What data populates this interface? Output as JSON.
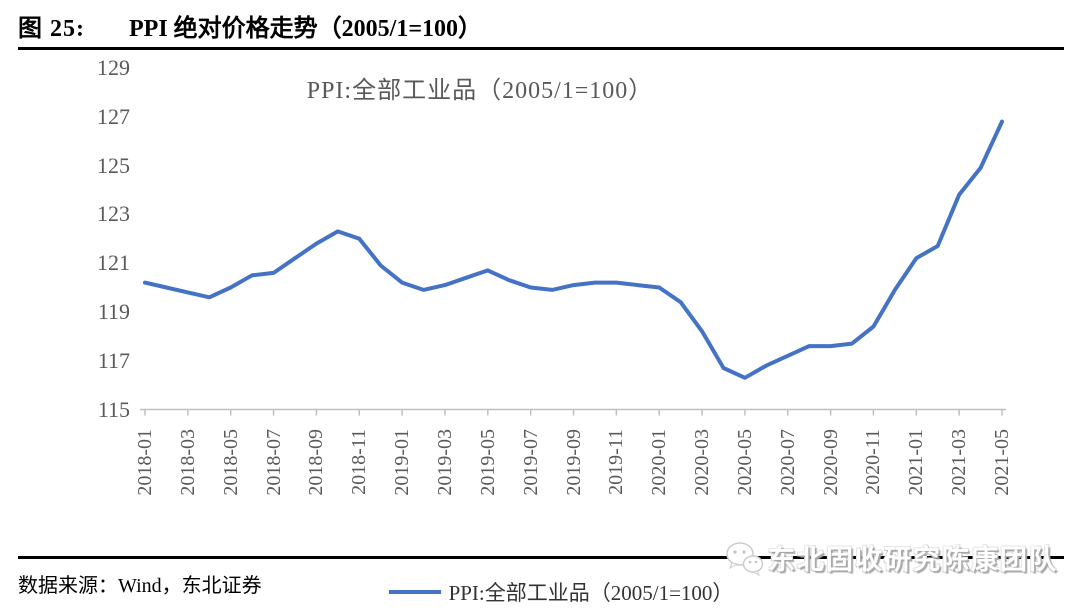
{
  "figure": {
    "label": "图 25:",
    "title": "PPI 绝对价格走势（2005/1=100）"
  },
  "chart_data": {
    "type": "line",
    "title": "PPI:全部工业品（2005/1=100）",
    "x": [
      "2018-01",
      "2018-02",
      "2018-03",
      "2018-04",
      "2018-05",
      "2018-06",
      "2018-07",
      "2018-08",
      "2018-09",
      "2018-10",
      "2018-11",
      "2018-12",
      "2019-01",
      "2019-02",
      "2019-03",
      "2019-04",
      "2019-05",
      "2019-06",
      "2019-07",
      "2019-08",
      "2019-09",
      "2019-10",
      "2019-11",
      "2019-12",
      "2020-01",
      "2020-02",
      "2020-03",
      "2020-04",
      "2020-05",
      "2020-06",
      "2020-07",
      "2020-08",
      "2020-09",
      "2020-10",
      "2020-11",
      "2020-12",
      "2021-01",
      "2021-02",
      "2021-03",
      "2021-04",
      "2021-05"
    ],
    "series": [
      {
        "name": "PPI:全部工业品（2005/1=100）",
        "color": "#4472C4",
        "values": [
          120.2,
          120.0,
          119.8,
          119.6,
          120.0,
          120.5,
          120.6,
          121.2,
          121.8,
          122.3,
          122.0,
          120.9,
          120.2,
          119.9,
          120.1,
          120.4,
          120.7,
          120.3,
          120.0,
          119.9,
          120.1,
          120.2,
          120.2,
          120.1,
          120.0,
          119.4,
          118.2,
          116.7,
          116.3,
          116.8,
          117.2,
          117.6,
          117.6,
          117.7,
          118.4,
          119.9,
          121.2,
          121.7,
          123.8,
          124.9,
          126.8
        ]
      }
    ],
    "ylim": [
      115,
      129
    ],
    "yticks": [
      115,
      117,
      119,
      121,
      123,
      125,
      127,
      129
    ],
    "x_tick_labels": [
      "2018-01",
      "2018-03",
      "2018-05",
      "2018-07",
      "2018-09",
      "2018-11",
      "2019-01",
      "2019-03",
      "2019-05",
      "2019-07",
      "2019-09",
      "2019-11",
      "2020-01",
      "2020-03",
      "2020-05",
      "2020-07",
      "2020-09",
      "2020-11",
      "2021-01",
      "2021-03",
      "2021-05"
    ],
    "x_tick_every": 2,
    "x_label_rotation": -90,
    "grid": false,
    "legend_position": "bottom"
  },
  "legend": {
    "label": "PPI:全部工业品（2005/1=100）"
  },
  "source": {
    "text": "数据来源：Wind，东北证券"
  },
  "watermark": {
    "icon": "wechat-icon",
    "text": "东北固收研究陈康团队"
  },
  "colors": {
    "line": "#4472C4",
    "axis": "#BFBFBF",
    "tick_label": "#595959",
    "chart_title": "#595959",
    "legend_text": "#333333",
    "rule": "#000000"
  }
}
